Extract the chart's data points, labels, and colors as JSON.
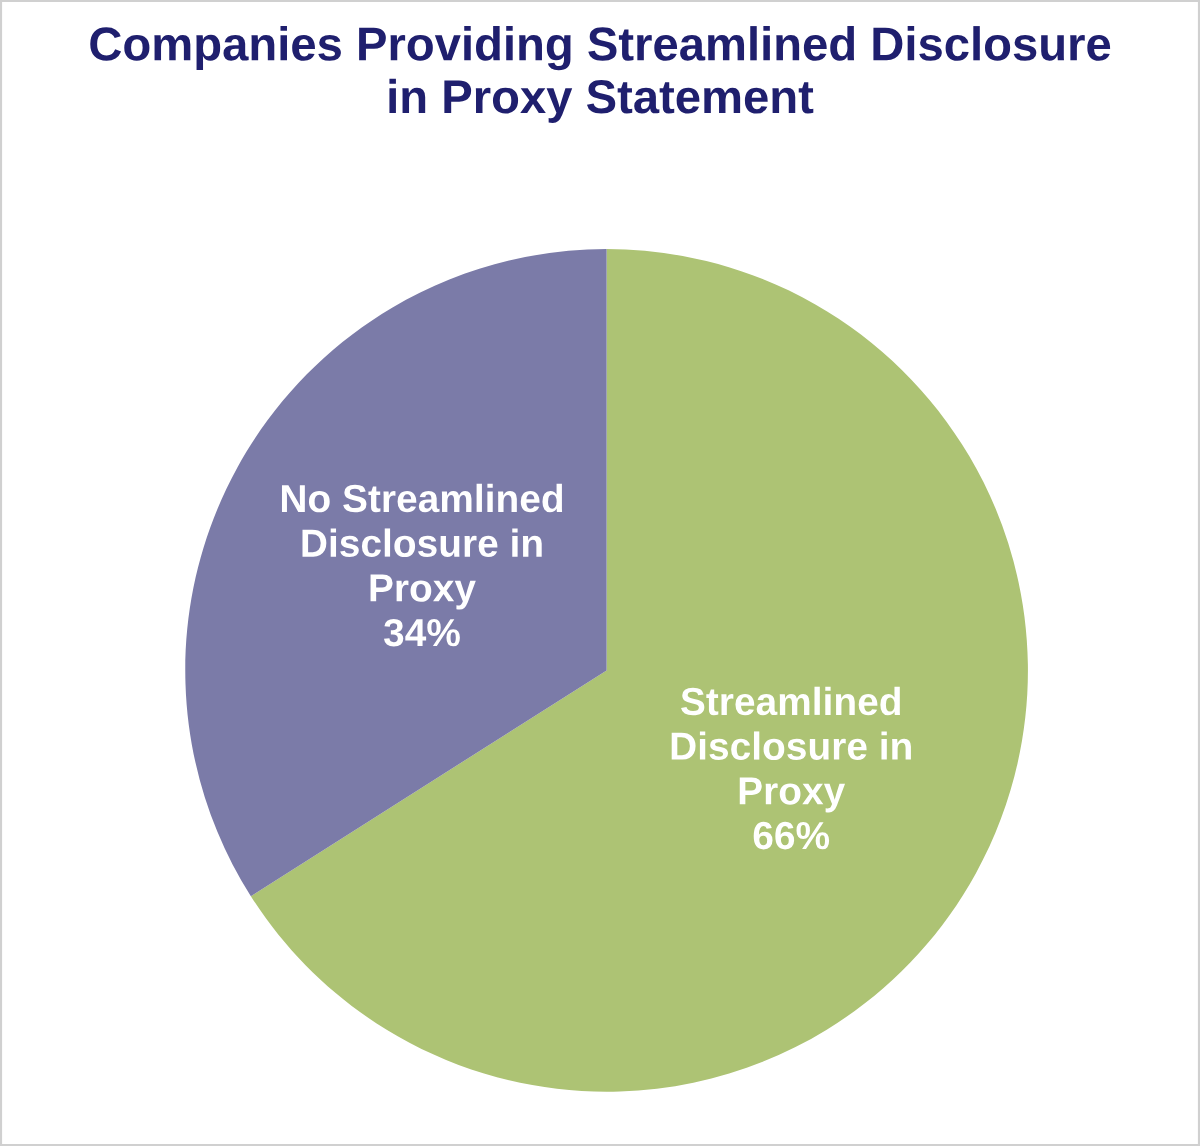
{
  "chart_data": {
    "type": "pie",
    "title": "Companies Providing Streamlined Disclosure\nin Proxy Statement",
    "categories": [
      "Streamlined\nDisclosure in\nProxy",
      "No Streamlined\nDisclosure in\nProxy"
    ],
    "values": [
      66,
      34
    ],
    "value_labels": [
      "66%",
      "34%"
    ],
    "colors": [
      "#adc374",
      "#7b7ba8"
    ],
    "legend": false
  }
}
